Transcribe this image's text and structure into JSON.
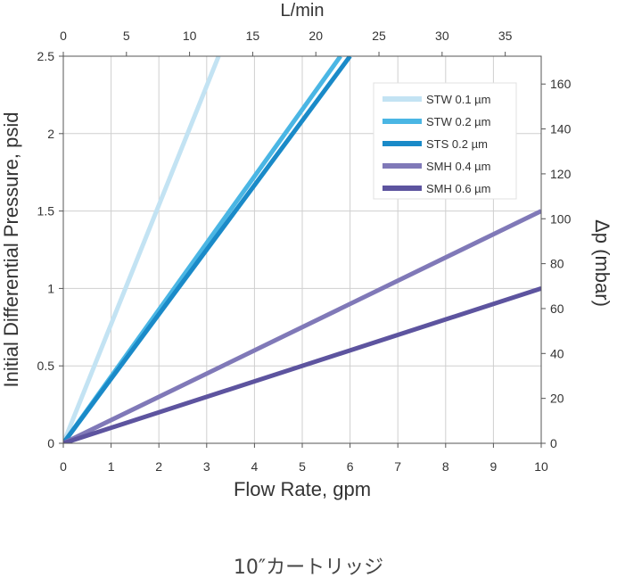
{
  "caption": "10″カートリッジ",
  "chart_data": {
    "type": "line",
    "xlabel": "Flow Rate, gpm",
    "ylabel": "Initial Differential Pressure, psid",
    "x2label": "L/min",
    "y2label": "Δp (mbar)",
    "xlim": [
      0,
      10
    ],
    "ylim": [
      0,
      2.5
    ],
    "x2lim": [
      0,
      37.85
    ],
    "y2lim": [
      0,
      172.4
    ],
    "x_ticks": [
      0,
      1,
      2,
      3,
      4,
      5,
      6,
      7,
      8,
      9,
      10
    ],
    "y_ticks": [
      0,
      0.5,
      1,
      1.5,
      2,
      2.5
    ],
    "x2_ticks": [
      0,
      5,
      10,
      15,
      20,
      25,
      30,
      35
    ],
    "y2_ticks": [
      0,
      20,
      40,
      60,
      80,
      100,
      120,
      140,
      160
    ],
    "x_tick_labels": [
      "0",
      "1",
      "2",
      "3",
      "4",
      "5",
      "6",
      "7",
      "8",
      "9",
      "10"
    ],
    "y_tick_labels": [
      "0",
      "0.5",
      "1",
      "1.5",
      "2",
      "2.5"
    ],
    "x2_tick_labels": [
      "0",
      "5",
      "10",
      "15",
      "20",
      "25",
      "30",
      "35"
    ],
    "y2_tick_labels": [
      "0",
      "20",
      "40",
      "60",
      "80",
      "100",
      "120",
      "140",
      "160"
    ],
    "grid": true,
    "legend_position": "top-right",
    "series": [
      {
        "name": "STW 0.1 µm",
        "color": "#c3e3f3",
        "x": [
          0,
          3.25
        ],
        "y": [
          0,
          2.5
        ]
      },
      {
        "name": "STW 0.2 µm",
        "color": "#4ab6e4",
        "x": [
          0,
          5.8
        ],
        "y": [
          0,
          2.5
        ]
      },
      {
        "name": "STS 0.2 µm",
        "color": "#1a8ac8",
        "x": [
          0,
          6.0
        ],
        "y": [
          0,
          2.5
        ]
      },
      {
        "name": "SMH 0.4 µm",
        "color": "#8079b8",
        "x": [
          0,
          10
        ],
        "y": [
          0,
          1.5
        ]
      },
      {
        "name": "SMH 0.6 µm",
        "color": "#5d549f",
        "x": [
          0,
          10
        ],
        "y": [
          0,
          1.0
        ]
      }
    ]
  }
}
